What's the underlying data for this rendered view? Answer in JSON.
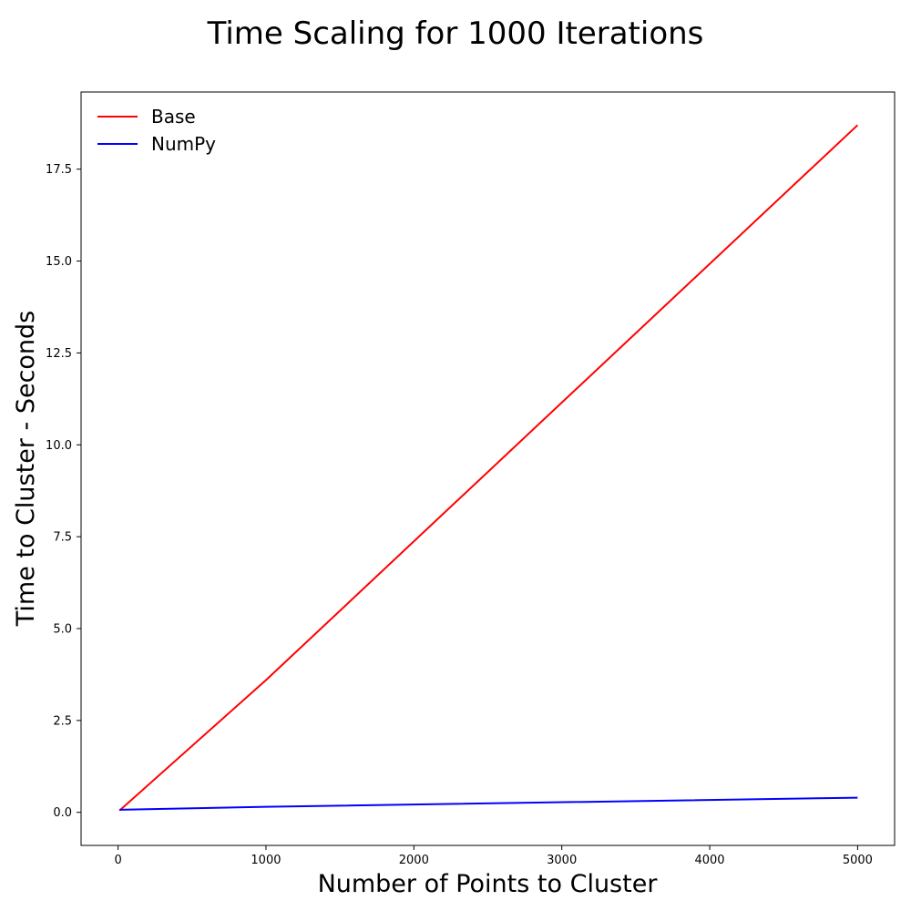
{
  "chart_data": {
    "type": "line",
    "title": "Time Scaling for 1000 Iterations",
    "xlabel": "Number of Points to Cluster",
    "ylabel": "Time to Cluster - Seconds",
    "xlim": [
      -250,
      5250
    ],
    "ylim": [
      -0.9,
      19.6
    ],
    "x_ticks": [
      0,
      1000,
      2000,
      3000,
      4000,
      5000
    ],
    "x_tick_labels": [
      "0",
      "1000",
      "2000",
      "3000",
      "4000",
      "5000"
    ],
    "y_ticks": [
      0.0,
      2.5,
      5.0,
      7.5,
      10.0,
      12.5,
      15.0,
      17.5
    ],
    "y_tick_labels": [
      "0.0",
      "2.5",
      "5.0",
      "7.5",
      "10.0",
      "12.5",
      "15.0",
      "17.5"
    ],
    "grid": false,
    "legend": {
      "position": "top-left",
      "frame": false
    },
    "series": [
      {
        "name": "Base",
        "color": "#ff0000",
        "x": [
          10,
          1000,
          5000
        ],
        "y": [
          0.05,
          3.6,
          18.7
        ]
      },
      {
        "name": "NumPy",
        "color": "#0000ff",
        "x": [
          10,
          1000,
          5000
        ],
        "y": [
          0.07,
          0.15,
          0.4
        ]
      }
    ]
  }
}
